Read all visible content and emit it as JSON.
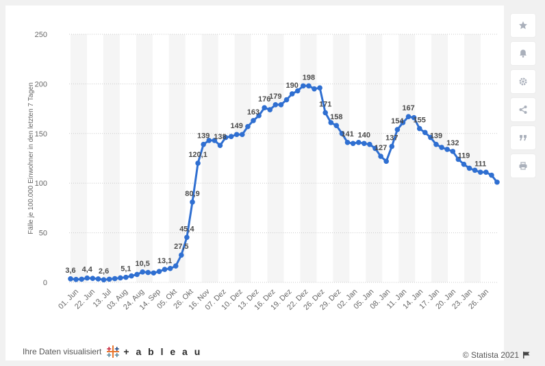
{
  "chart_data": {
    "type": "line",
    "title": "",
    "xlabel": "",
    "ylabel": "Fälle je 100.000 Einwohner in den letzten 7 Tagen",
    "ylim": [
      0,
      250
    ],
    "yticks": [
      "0",
      "50",
      "100",
      "150",
      "200",
      "250"
    ],
    "grid": true,
    "x_tick_labels": [
      "01. Jun",
      "22. Jun",
      "13. Jul",
      "03. Aug",
      "24. Aug",
      "14. Sep",
      "05. Okt",
      "26. Okt",
      "16. Nov",
      "07. Dez",
      "10. Dez",
      "13. Dez",
      "16. Dez",
      "19. Dez",
      "22. Dez",
      "26. Dez",
      "29. Dez",
      "02. Jan",
      "05. Jan",
      "08. Jan",
      "11. Jan",
      "14. Jan",
      "17. Jan",
      "20. Jan",
      "23. Jan",
      "26. Jan"
    ],
    "series_color": "#2f6fd1",
    "values": [
      3.6,
      3,
      3.2,
      4.4,
      4,
      3.5,
      2.6,
      3.2,
      3.8,
      4.5,
      5.1,
      6.5,
      8,
      10.5,
      10,
      9.5,
      11,
      13.1,
      14,
      16.5,
      27.5,
      45.4,
      80.9,
      120.1,
      139,
      143,
      143,
      138,
      146,
      147,
      149,
      149,
      157,
      163,
      168,
      176,
      174,
      179,
      179,
      184,
      190,
      193,
      198,
      198,
      195,
      196,
      171,
      161,
      158,
      150,
      141,
      140,
      141,
      140,
      139,
      135,
      127,
      122,
      137,
      154,
      161,
      167,
      166,
      155,
      151,
      146,
      139,
      136,
      134,
      132,
      124,
      119,
      115,
      113,
      111,
      111,
      108,
      101
    ],
    "data_labels": [
      {
        "i": 0,
        "text": "3,6"
      },
      {
        "i": 3,
        "text": "4,4"
      },
      {
        "i": 6,
        "text": "2,6"
      },
      {
        "i": 10,
        "text": "5,1"
      },
      {
        "i": 13,
        "text": "10,5"
      },
      {
        "i": 17,
        "text": "13,1"
      },
      {
        "i": 20,
        "text": "27,5"
      },
      {
        "i": 21,
        "text": "45,4"
      },
      {
        "i": 22,
        "text": "80,9"
      },
      {
        "i": 23,
        "text": "120,1"
      },
      {
        "i": 24,
        "text": "139"
      },
      {
        "i": 27,
        "text": "138"
      },
      {
        "i": 30,
        "text": "149"
      },
      {
        "i": 33,
        "text": "163"
      },
      {
        "i": 35,
        "text": "176"
      },
      {
        "i": 37,
        "text": "179"
      },
      {
        "i": 40,
        "text": "190"
      },
      {
        "i": 43,
        "text": "198"
      },
      {
        "i": 46,
        "text": "171"
      },
      {
        "i": 48,
        "text": "158"
      },
      {
        "i": 50,
        "text": "141"
      },
      {
        "i": 53,
        "text": "140"
      },
      {
        "i": 56,
        "text": "127"
      },
      {
        "i": 58,
        "text": "137"
      },
      {
        "i": 59,
        "text": "154"
      },
      {
        "i": 61,
        "text": "167"
      },
      {
        "i": 63,
        "text": "155"
      },
      {
        "i": 66,
        "text": "139"
      },
      {
        "i": 69,
        "text": "132"
      },
      {
        "i": 71,
        "text": "119"
      },
      {
        "i": 74,
        "text": "111"
      }
    ]
  },
  "footer": {
    "visualized_text": "Ihre Daten visualisiert",
    "tableau_word": "+ a b l e a u",
    "copyright": "© Statista 2021"
  },
  "toolbar": {
    "icons": [
      "star-icon",
      "bell-icon",
      "gear-icon",
      "share-icon",
      "quote-icon",
      "print-icon"
    ]
  }
}
